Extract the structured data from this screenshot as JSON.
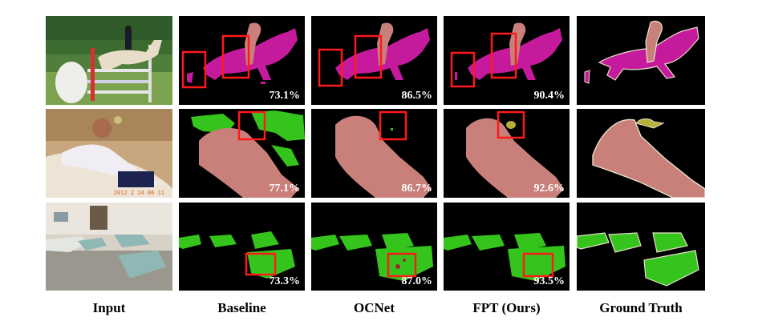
{
  "columns": [
    {
      "id": "input",
      "label": "Input"
    },
    {
      "id": "baseline",
      "label": "Baseline"
    },
    {
      "id": "ocnet",
      "label": "OCNet"
    },
    {
      "id": "fpt",
      "label": "FPT (Ours)"
    },
    {
      "id": "gt",
      "label": "Ground Truth"
    }
  ],
  "rows": [
    {
      "id": "horse",
      "scores": {
        "baseline": "73.1%",
        "ocnet": "86.5%",
        "fpt": "90.4%"
      }
    },
    {
      "id": "person",
      "scores": {
        "baseline": "77.1%",
        "ocnet": "86.7%",
        "fpt": "92.6%"
      }
    },
    {
      "id": "sofa",
      "scores": {
        "baseline": "73.3%",
        "ocnet": "87.0%",
        "fpt": "93.5%"
      }
    }
  ],
  "input_timestamp": "2012 2 24 06 11",
  "colors": {
    "background": "#000000",
    "horse_class": "#c61a9c",
    "person_class": "#c9807a",
    "bird_class": "#b5b03a",
    "sofa_class": "#35c41c",
    "error_box": "#ff1a1a",
    "gt_outline": "#e8e0c8"
  }
}
